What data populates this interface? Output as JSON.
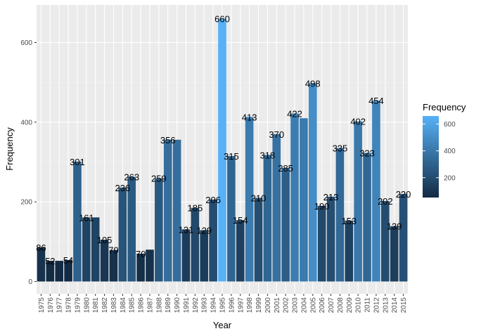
{
  "chart_data": {
    "type": "bar",
    "title": "",
    "xlabel": "Year",
    "ylabel": "Frequency",
    "ylim": [
      0,
      700
    ],
    "yticks": [
      0,
      200,
      400,
      600
    ],
    "grid": true,
    "categories": [
      "1975",
      "1976",
      "1977",
      "1978",
      "1979",
      "1980",
      "1981",
      "1982",
      "1983",
      "1984",
      "1985",
      "1986",
      "1987",
      "1988",
      "1989",
      "1990",
      "1991",
      "1992",
      "1993",
      "1994",
      "1995",
      "1996",
      "1997",
      "1998",
      "1999",
      "2000",
      "2001",
      "2002",
      "2003",
      "2004",
      "2005",
      "2006",
      "2007",
      "2008",
      "2009",
      "2010",
      "2011",
      "2012",
      "2013",
      "2014",
      "2015"
    ],
    "values": [
      86,
      52,
      52,
      54,
      301,
      161,
      161,
      105,
      79,
      236,
      263,
      70,
      80,
      259,
      356,
      356,
      131,
      185,
      129,
      206,
      660,
      315,
      154,
      413,
      210,
      318,
      370,
      285,
      422,
      410,
      498,
      190,
      213,
      335,
      153,
      402,
      323,
      454,
      202,
      139,
      220
    ],
    "labels": [
      "86",
      "52",
      "",
      "54",
      "301",
      "161",
      "",
      "105",
      "79",
      "236",
      "263",
      "70",
      "",
      "259",
      "356",
      "",
      "131",
      "185",
      "129",
      "206",
      "660",
      "315",
      "154",
      "413",
      "210",
      "318",
      "370",
      "285",
      "422",
      "",
      "498",
      "190",
      "213",
      "335",
      "153",
      "402",
      "323",
      "454",
      "202",
      "139",
      "220"
    ],
    "fill_scale": {
      "low": "#132b43",
      "high": "#56b1f7"
    },
    "legend": {
      "title": "Frequency",
      "position": "right",
      "breaks": [
        200,
        400,
        600
      ],
      "break_labels": [
        "200",
        "400",
        "600"
      ]
    }
  }
}
